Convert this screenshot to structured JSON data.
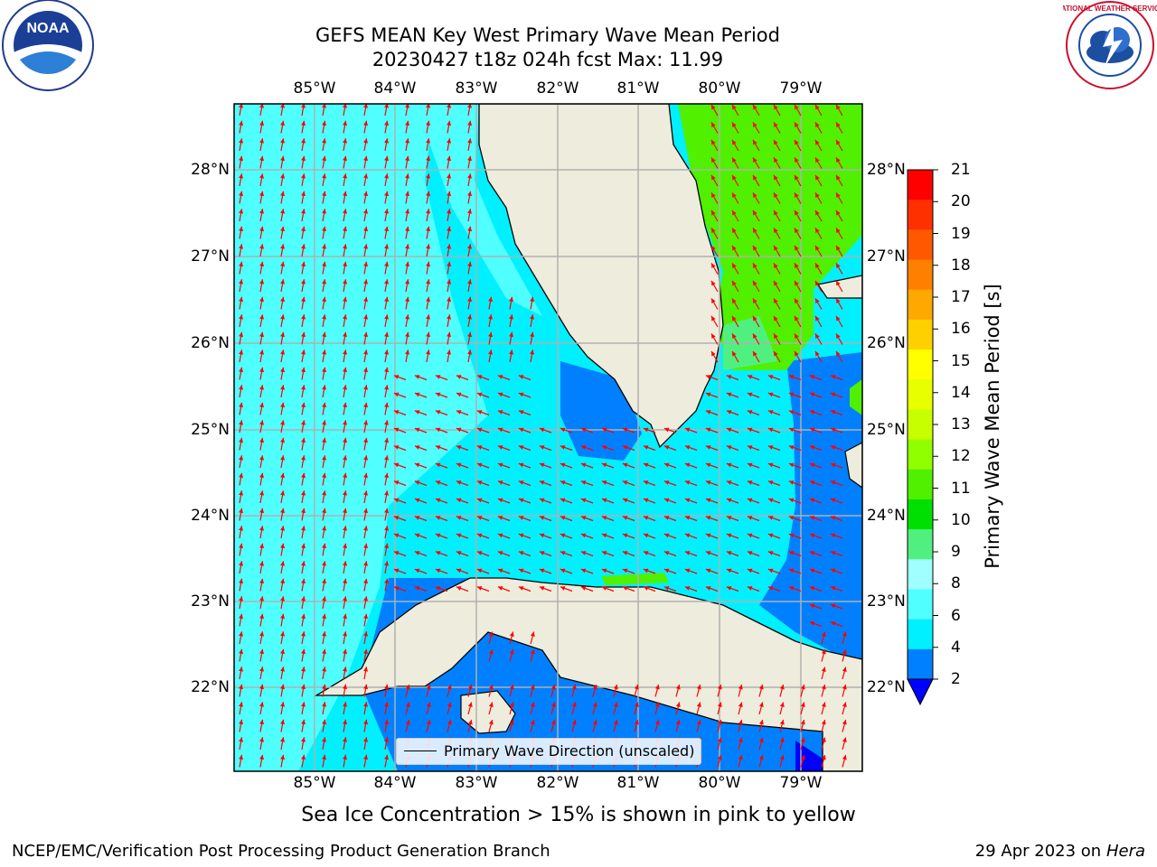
{
  "title_line1": "GEFS MEAN Key West Primary Wave Mean Period",
  "title_line2": "20230427 t18z 024h fcst   Max: 11.99",
  "lon_labels": [
    "85°W",
    "84°W",
    "83°W",
    "82°W",
    "81°W",
    "80°W",
    "79°W"
  ],
  "lat_labels": [
    "28°N",
    "27°N",
    "26°N",
    "25°N",
    "24°N",
    "23°N",
    "22°N"
  ],
  "colorbar": {
    "label": "Primary Wave Mean Period [s]",
    "ticks": [
      "21",
      "20",
      "19",
      "18",
      "17",
      "16",
      "15",
      "14",
      "13",
      "12",
      "11",
      "10",
      "9",
      "8",
      "6",
      "4",
      "2"
    ],
    "colors": [
      "#ff0000",
      "#ff3000",
      "#ff5800",
      "#ff8000",
      "#ffa800",
      "#ffd000",
      "#ffff00",
      "#e8ff00",
      "#c8ff00",
      "#90ff00",
      "#50f000",
      "#00e000",
      "#50f080",
      "#a0ffff",
      "#50ffff",
      "#00f0ff",
      "#0080ff",
      "#0000ff"
    ]
  },
  "legend_text": "Primary Wave Direction (unscaled)",
  "note": "Sea Ice Concentration > 15% is shown in pink to yellow",
  "footer_left": "NCEP/EMC/Verification Post Processing Product Generation Branch",
  "footer_right_prefix": "29 Apr 2023 on ",
  "footer_right_host": "Hera",
  "logos": {
    "left": "noaa-logo",
    "left_text": "NOAA",
    "right": "nws-logo",
    "right_text": "NATIONAL WEATHER SERVICE"
  },
  "colors": {
    "land": "#eeecdc",
    "sea_light": "#50ffff",
    "sea_cyan": "#00f0ff",
    "sea_blue": "#0080ff",
    "sea_green": "#50f000",
    "arrow": "#ff0000",
    "grid": "#b0b0b0"
  }
}
